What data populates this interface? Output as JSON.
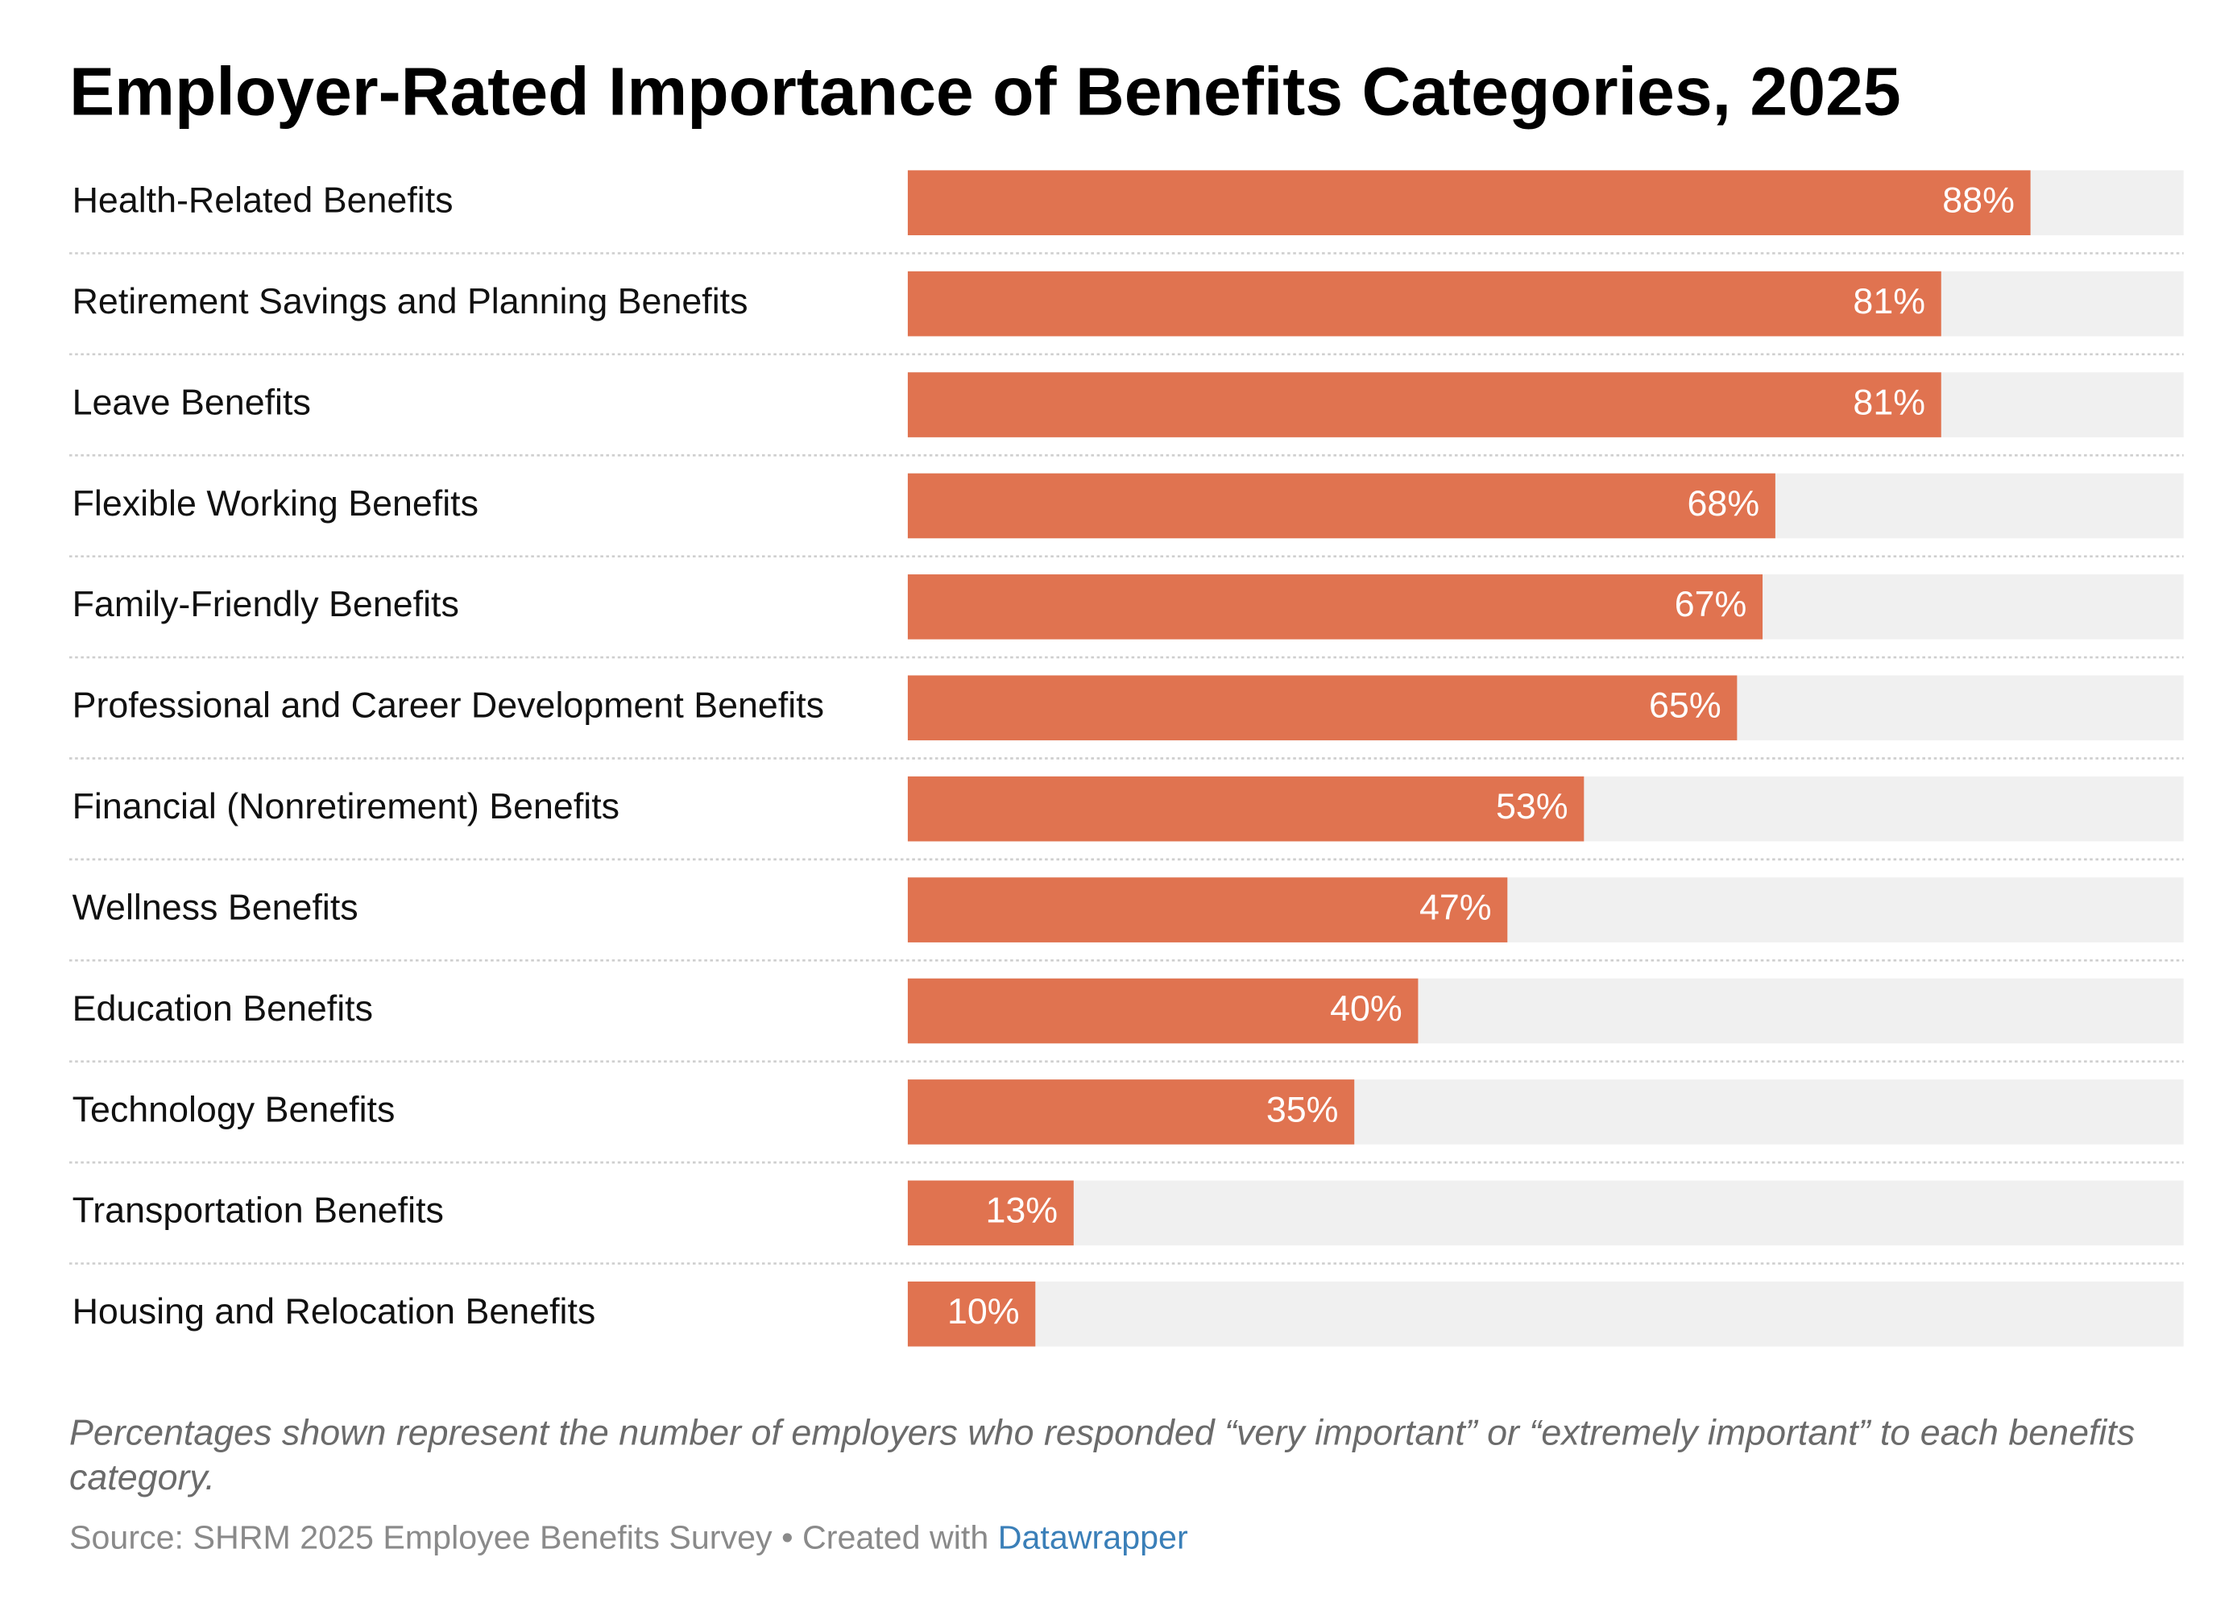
{
  "chart_data": {
    "type": "bar",
    "orientation": "horizontal",
    "title": "Employer-Rated Importance of Benefits Categories, 2025",
    "categories": [
      "Health-Related Benefits",
      "Retirement Savings and Planning Benefits",
      "Leave Benefits",
      "Flexible Working Benefits",
      "Family-Friendly Benefits",
      "Professional and Career Development Benefits",
      "Financial (Nonretirement) Benefits",
      "Wellness Benefits",
      "Education Benefits",
      "Technology Benefits",
      "Transportation Benefits",
      "Housing and Relocation Benefits"
    ],
    "values": [
      88,
      81,
      81,
      68,
      67,
      65,
      53,
      47,
      40,
      35,
      13,
      10
    ],
    "value_labels": [
      "88%",
      "81%",
      "81%",
      "68%",
      "67%",
      "65%",
      "53%",
      "47%",
      "40%",
      "35%",
      "13%",
      "10%"
    ],
    "color": "#e07350",
    "track_color": "#f0f0f0",
    "xlim": [
      0,
      100
    ],
    "note": "Percentages shown represent the number of employers who responded “very important” or “extremely important” to each benefits category.",
    "source": "Source: SHRM 2025 Employee Benefits Survey",
    "credit": "• Created with",
    "credit_link": "Datawrapper"
  }
}
